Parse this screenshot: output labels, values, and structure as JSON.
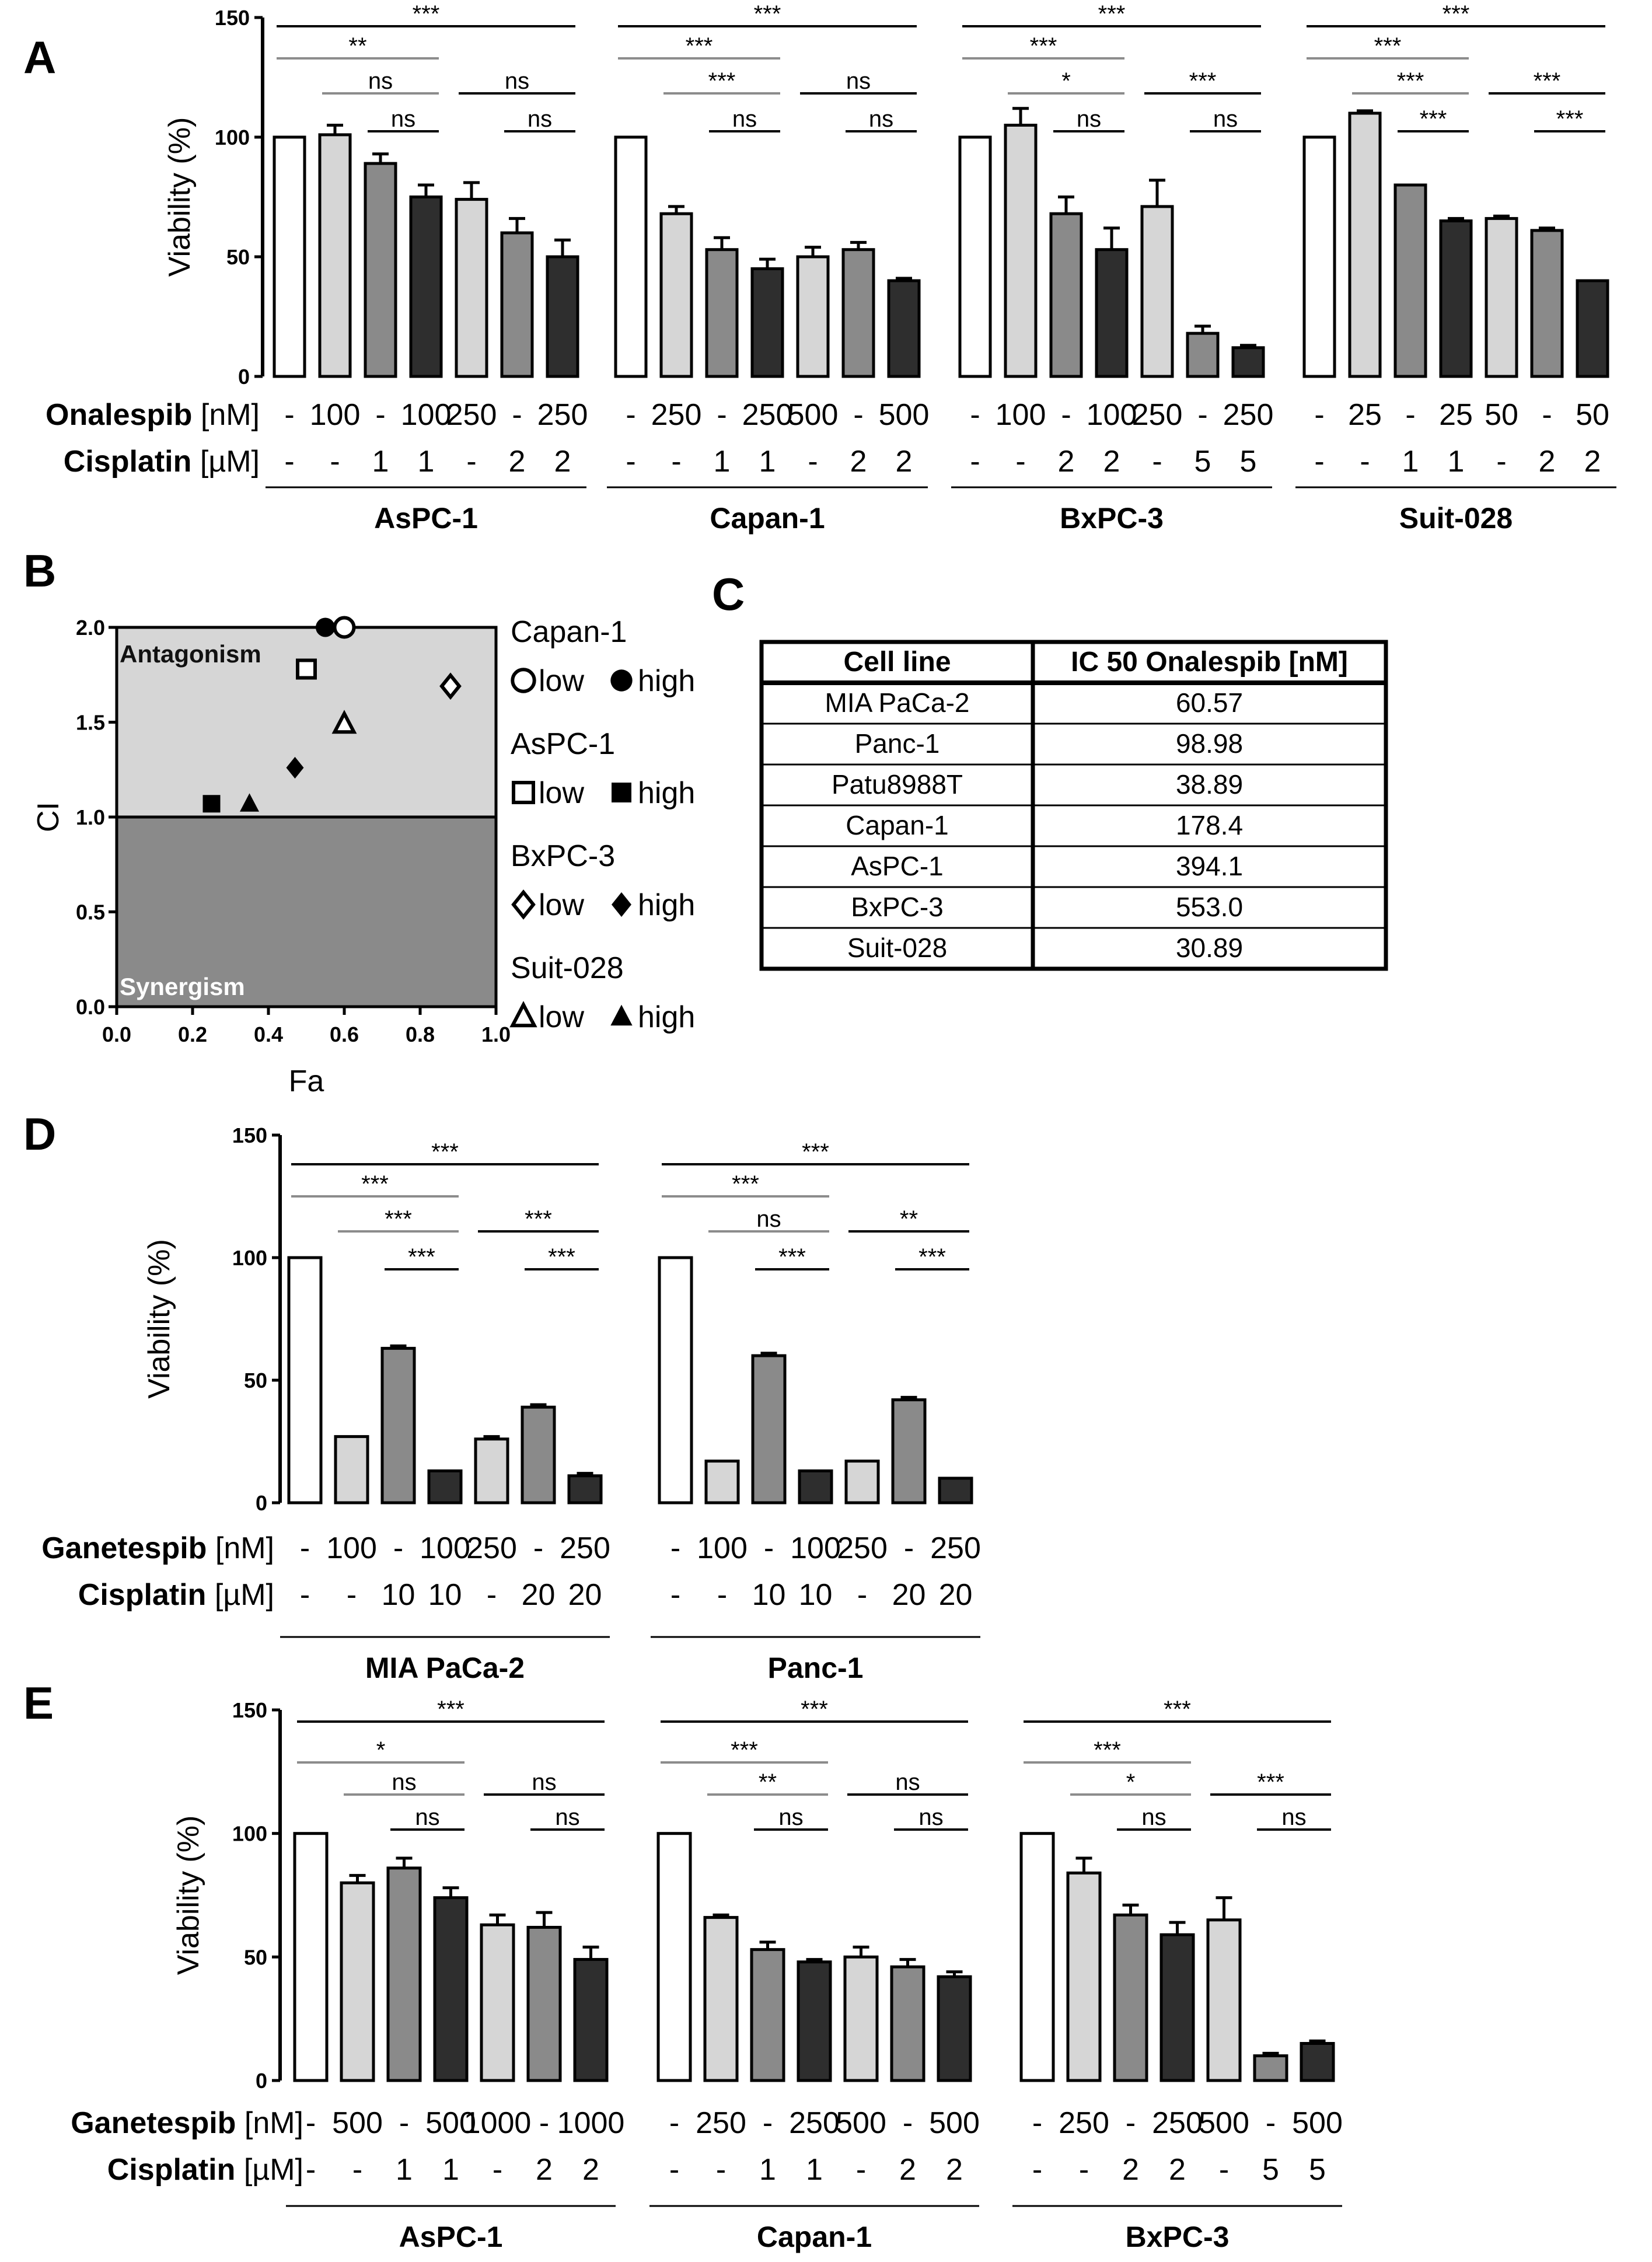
{
  "chart_data": [
    {
      "panel": "A",
      "type": "bar",
      "ylabel": "Viability (%)",
      "ylim": [
        0,
        150
      ],
      "yticks": [
        0,
        50,
        100,
        150
      ],
      "row_labels": {
        "drug": "Onalespib",
        "drug_unit": "[nM]",
        "platin": "Cisplatin",
        "platin_unit": "[µM]"
      },
      "groups": [
        {
          "name": "AsPC-1",
          "onalespib": [
            "-",
            "100",
            "-",
            "100",
            "250",
            "-",
            "250"
          ],
          "cisplatin": [
            "-",
            "-",
            "1",
            "1",
            "-",
            "2",
            "2"
          ],
          "values": [
            100,
            101,
            89,
            75,
            74,
            60,
            50
          ],
          "errors": [
            0,
            4,
            4,
            5,
            7,
            6,
            7
          ],
          "brackets": [
            {
              "from": 0,
              "to": 6,
              "label": "***",
              "level": 0
            },
            {
              "from": 0,
              "to": 3,
              "label": "**",
              "level": 1
            },
            {
              "from": 1,
              "to": 3,
              "label": "ns",
              "level": 2
            },
            {
              "from": 2,
              "to": 3,
              "label": "ns",
              "level": 3
            },
            {
              "from": 4,
              "to": 6,
              "label": "ns",
              "level": 2
            },
            {
              "from": 5,
              "to": 6,
              "label": "ns",
              "level": 3
            }
          ]
        },
        {
          "name": "Capan-1",
          "onalespib": [
            "-",
            "250",
            "-",
            "250",
            "500",
            "-",
            "500"
          ],
          "cisplatin": [
            "-",
            "-",
            "1",
            "1",
            "-",
            "2",
            "2"
          ],
          "values": [
            100,
            68,
            53,
            45,
            50,
            53,
            40
          ],
          "errors": [
            0,
            3,
            5,
            4,
            4,
            3,
            1
          ],
          "brackets": [
            {
              "from": 0,
              "to": 6,
              "label": "***",
              "level": 0
            },
            {
              "from": 0,
              "to": 3,
              "label": "***",
              "level": 1
            },
            {
              "from": 1,
              "to": 3,
              "label": "***",
              "level": 2
            },
            {
              "from": 2,
              "to": 3,
              "label": "ns",
              "level": 3
            },
            {
              "from": 4,
              "to": 6,
              "label": "ns",
              "level": 2
            },
            {
              "from": 5,
              "to": 6,
              "label": "ns",
              "level": 3
            }
          ]
        },
        {
          "name": "BxPC-3",
          "onalespib": [
            "-",
            "100",
            "-",
            "100",
            "250",
            "-",
            "250"
          ],
          "cisplatin": [
            "-",
            "-",
            "2",
            "2",
            "-",
            "5",
            "5"
          ],
          "values": [
            100,
            105,
            68,
            53,
            71,
            18,
            12
          ],
          "errors": [
            0,
            7,
            7,
            9,
            11,
            3,
            1
          ],
          "brackets": [
            {
              "from": 0,
              "to": 6,
              "label": "***",
              "level": 0
            },
            {
              "from": 0,
              "to": 3,
              "label": "***",
              "level": 1
            },
            {
              "from": 1,
              "to": 3,
              "label": "*",
              "level": 2
            },
            {
              "from": 2,
              "to": 3,
              "label": "ns",
              "level": 3
            },
            {
              "from": 4,
              "to": 6,
              "label": "***",
              "level": 2
            },
            {
              "from": 5,
              "to": 6,
              "label": "ns",
              "level": 3
            }
          ]
        },
        {
          "name": "Suit-028",
          "onalespib": [
            "-",
            "25",
            "-",
            "25",
            "50",
            "-",
            "50"
          ],
          "cisplatin": [
            "-",
            "-",
            "1",
            "1",
            "-",
            "2",
            "2"
          ],
          "values": [
            100,
            110,
            80,
            65,
            66,
            61,
            40
          ],
          "errors": [
            0,
            1,
            0,
            1,
            1,
            1,
            0
          ],
          "brackets": [
            {
              "from": 0,
              "to": 6,
              "label": "***",
              "level": 0
            },
            {
              "from": 0,
              "to": 3,
              "label": "***",
              "level": 1
            },
            {
              "from": 1,
              "to": 3,
              "label": "***",
              "level": 2
            },
            {
              "from": 2,
              "to": 3,
              "label": "***",
              "level": 3
            },
            {
              "from": 4,
              "to": 6,
              "label": "***",
              "level": 2
            },
            {
              "from": 5,
              "to": 6,
              "label": "***",
              "level": 3
            }
          ]
        }
      ]
    },
    {
      "panel": "B",
      "type": "scatter",
      "xlabel": "Fa",
      "ylabel": "CI",
      "xlim": [
        0.0,
        1.0
      ],
      "ylim": [
        0.0,
        2.0
      ],
      "xticks": [
        "0.0",
        "0.2",
        "0.4",
        "0.6",
        "0.8",
        "1.0"
      ],
      "yticks": [
        "0.0",
        "0.5",
        "1.0",
        "1.5",
        "2.0"
      ],
      "threshold": 1.0,
      "region_labels": {
        "upper": "Antagonism",
        "lower": "Synergism"
      },
      "points": [
        {
          "series": "Capan-1 low",
          "marker": "open-circle",
          "x": 0.6,
          "y": 2.0
        },
        {
          "series": "Capan-1 high",
          "marker": "filled-circle",
          "x": 0.55,
          "y": 2.0
        },
        {
          "series": "AsPC-1 low",
          "marker": "open-square",
          "x": 0.5,
          "y": 1.78
        },
        {
          "series": "AsPC-1 high",
          "marker": "filled-square",
          "x": 0.25,
          "y": 1.07
        },
        {
          "series": "BxPC-3 low",
          "marker": "open-diamond",
          "x": 0.88,
          "y": 1.69
        },
        {
          "series": "BxPC-3 high",
          "marker": "filled-diamond",
          "x": 0.47,
          "y": 1.26
        },
        {
          "series": "Suit-028 low",
          "marker": "open-triangle",
          "x": 0.6,
          "y": 1.49
        },
        {
          "series": "Suit-028 high",
          "marker": "filled-triangle",
          "x": 0.35,
          "y": 1.07
        }
      ],
      "legend": [
        {
          "cell": "Capan-1",
          "low_marker": "open-circle",
          "high_marker": "filled-circle",
          "low": "low",
          "high": "high"
        },
        {
          "cell": "AsPC-1",
          "low_marker": "open-square",
          "high_marker": "filled-square",
          "low": "low",
          "high": "high"
        },
        {
          "cell": "BxPC-3",
          "low_marker": "open-diamond",
          "high_marker": "filled-diamond",
          "low": "low",
          "high": "high"
        },
        {
          "cell": "Suit-028",
          "low_marker": "open-triangle",
          "high_marker": "filled-triangle",
          "low": "low",
          "high": "high"
        }
      ]
    },
    {
      "panel": "C",
      "type": "table",
      "columns": [
        "Cell line",
        "IC 50 Onalespib [nM]"
      ],
      "rows": [
        [
          "MIA PaCa-2",
          "60.57"
        ],
        [
          "Panc-1",
          "98.98"
        ],
        [
          "Patu8988T",
          "38.89"
        ],
        [
          "Capan-1",
          "178.4"
        ],
        [
          "AsPC-1",
          "394.1"
        ],
        [
          "BxPC-3",
          "553.0"
        ],
        [
          "Suit-028",
          "30.89"
        ]
      ]
    },
    {
      "panel": "D",
      "type": "bar",
      "ylabel": "Viability (%)",
      "ylim": [
        0,
        150
      ],
      "yticks": [
        0,
        50,
        100,
        150
      ],
      "row_labels": {
        "drug": "Ganetespib",
        "drug_unit": "[nM]",
        "platin": "Cisplatin",
        "platin_unit": "[µM]"
      },
      "groups": [
        {
          "name": "MIA PaCa-2",
          "ganetespib": [
            "-",
            "100",
            "-",
            "100",
            "250",
            "-",
            "250"
          ],
          "cisplatin": [
            "-",
            "-",
            "10",
            "10",
            "-",
            "20",
            "20"
          ],
          "values": [
            100,
            27,
            63,
            13,
            26,
            39,
            11
          ],
          "errors": [
            0,
            0,
            1,
            0,
            1,
            1,
            1
          ],
          "brackets": [
            {
              "from": 0,
              "to": 6,
              "label": "***",
              "level": 0
            },
            {
              "from": 0,
              "to": 3,
              "label": "***",
              "level": 1
            },
            {
              "from": 1,
              "to": 3,
              "label": "***",
              "level": 2
            },
            {
              "from": 2,
              "to": 3,
              "label": "***",
              "level": 3
            },
            {
              "from": 4,
              "to": 6,
              "label": "***",
              "level": 2
            },
            {
              "from": 5,
              "to": 6,
              "label": "***",
              "level": 3
            }
          ]
        },
        {
          "name": "Panc-1",
          "ganetespib": [
            "-",
            "100",
            "-",
            "100",
            "250",
            "-",
            "250"
          ],
          "cisplatin": [
            "-",
            "-",
            "10",
            "10",
            "-",
            "20",
            "20"
          ],
          "values": [
            100,
            17,
            60,
            13,
            17,
            42,
            10
          ],
          "errors": [
            0,
            0,
            1,
            0,
            0,
            1,
            0
          ],
          "brackets": [
            {
              "from": 0,
              "to": 6,
              "label": "***",
              "level": 0
            },
            {
              "from": 0,
              "to": 3,
              "label": "***",
              "level": 1
            },
            {
              "from": 1,
              "to": 3,
              "label": "ns",
              "level": 2
            },
            {
              "from": 2,
              "to": 3,
              "label": "***",
              "level": 3
            },
            {
              "from": 4,
              "to": 6,
              "label": "**",
              "level": 2
            },
            {
              "from": 5,
              "to": 6,
              "label": "***",
              "level": 3
            }
          ]
        }
      ]
    },
    {
      "panel": "E",
      "type": "bar",
      "ylabel": "Viability (%)",
      "ylim": [
        0,
        150
      ],
      "yticks": [
        0,
        50,
        100,
        150
      ],
      "row_labels": {
        "drug": "Ganetespib",
        "drug_unit": "[nM]",
        "platin": "Cisplatin",
        "platin_unit": "[µM]"
      },
      "groups": [
        {
          "name": "AsPC-1",
          "ganetespib": [
            "-",
            "500",
            "-",
            "500",
            "1000",
            "-",
            "1000"
          ],
          "cisplatin": [
            "-",
            "-",
            "1",
            "1",
            "-",
            "2",
            "2"
          ],
          "values": [
            100,
            80,
            86,
            74,
            63,
            62,
            49
          ],
          "errors": [
            0,
            3,
            4,
            4,
            4,
            6,
            5
          ],
          "brackets": [
            {
              "from": 0,
              "to": 6,
              "label": "***",
              "level": 0
            },
            {
              "from": 0,
              "to": 3,
              "label": "*",
              "level": 1
            },
            {
              "from": 1,
              "to": 3,
              "label": "ns",
              "level": 2
            },
            {
              "from": 2,
              "to": 3,
              "label": "ns",
              "level": 3
            },
            {
              "from": 4,
              "to": 6,
              "label": "ns",
              "level": 2
            },
            {
              "from": 5,
              "to": 6,
              "label": "ns",
              "level": 3
            }
          ]
        },
        {
          "name": "Capan-1",
          "ganetespib": [
            "-",
            "250",
            "-",
            "250",
            "500",
            "-",
            "500"
          ],
          "cisplatin": [
            "-",
            "-",
            "1",
            "1",
            "-",
            "2",
            "2"
          ],
          "values": [
            100,
            66,
            53,
            48,
            50,
            46,
            42
          ],
          "errors": [
            0,
            1,
            3,
            1,
            4,
            3,
            2
          ],
          "brackets": [
            {
              "from": 0,
              "to": 6,
              "label": "***",
              "level": 0
            },
            {
              "from": 0,
              "to": 3,
              "label": "***",
              "level": 1
            },
            {
              "from": 1,
              "to": 3,
              "label": "**",
              "level": 2
            },
            {
              "from": 2,
              "to": 3,
              "label": "ns",
              "level": 3
            },
            {
              "from": 4,
              "to": 6,
              "label": "ns",
              "level": 2
            },
            {
              "from": 5,
              "to": 6,
              "label": "ns",
              "level": 3
            }
          ]
        },
        {
          "name": "BxPC-3",
          "ganetespib": [
            "-",
            "250",
            "-",
            "250",
            "500",
            "-",
            "500"
          ],
          "cisplatin": [
            "-",
            "-",
            "2",
            "2",
            "-",
            "5",
            "5"
          ],
          "values": [
            100,
            84,
            67,
            59,
            65,
            10,
            15
          ],
          "errors": [
            0,
            6,
            4,
            5,
            9,
            1,
            1
          ],
          "brackets": [
            {
              "from": 0,
              "to": 6,
              "label": "***",
              "level": 0
            },
            {
              "from": 0,
              "to": 3,
              "label": "***",
              "level": 1
            },
            {
              "from": 1,
              "to": 3,
              "label": "*",
              "level": 2
            },
            {
              "from": 2,
              "to": 3,
              "label": "ns",
              "level": 3
            },
            {
              "from": 4,
              "to": 6,
              "label": "***",
              "level": 2
            },
            {
              "from": 5,
              "to": 6,
              "label": "ns",
              "level": 3
            }
          ]
        }
      ]
    }
  ],
  "colors": {
    "bar_fills": [
      "#ffffff",
      "#d6d6d6",
      "#8a8a8a",
      "#2e2e2e",
      "#d6d6d6",
      "#8a8a8a",
      "#2e2e2e"
    ],
    "bracket_gray": "#8c8c8c",
    "antagonism_region": "#d6d6d6",
    "synergism_region": "#8a8a8a"
  }
}
